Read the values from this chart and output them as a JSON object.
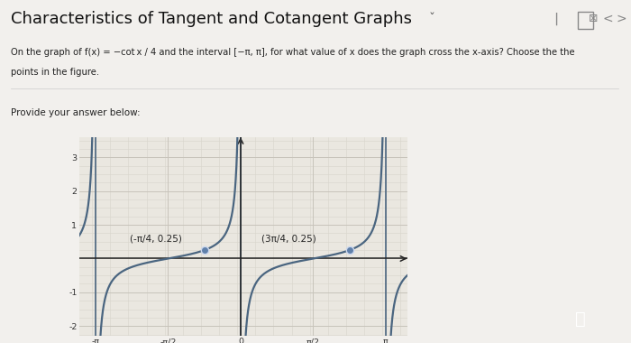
{
  "title": "Characteristics of Tangent and Cotangent Graphs ˇ",
  "title_plain": "Characteristics of Tangent and Cotangent Graphs",
  "question_line1": "On the graph of f(x) = −cot x / 4 and the interval [−π, π], for what value of x does the graph cross the x-axis? Choose the the",
  "question_line2": "points in the figure.",
  "provide_text": "Provide your answer below:",
  "point1": [
    -0.7853981633974483,
    0.25
  ],
  "point2": [
    2.356194490192345,
    0.25
  ],
  "point1_label": "(-π/4, 0.25)",
  "point2_label": "(3π/4, 0.25)",
  "xlim": [
    -3.5,
    3.6
  ],
  "ylim": [
    -2.3,
    3.6
  ],
  "xticks": [
    -3.141592653589793,
    -1.5707963267948966,
    0,
    1.5707963267948966,
    3.141592653589793
  ],
  "xtick_labels": [
    "-π",
    "-π/2",
    "0",
    "π/2",
    "π"
  ],
  "yticks": [
    -2,
    -1,
    1,
    2,
    3
  ],
  "curve_color": "#4a6580",
  "point_color": "#6080aa",
  "bg_color": "#f2f0ed",
  "plot_bg": "#eae7e0",
  "grid_color_minor": "#d8d5cc",
  "grid_color_major": "#c8c4bb",
  "axis_color": "#222222",
  "title_color": "#111111",
  "text_color": "#222222",
  "nav_color": "#666666",
  "figsize": [
    7.0,
    3.8
  ],
  "dpi": 100
}
